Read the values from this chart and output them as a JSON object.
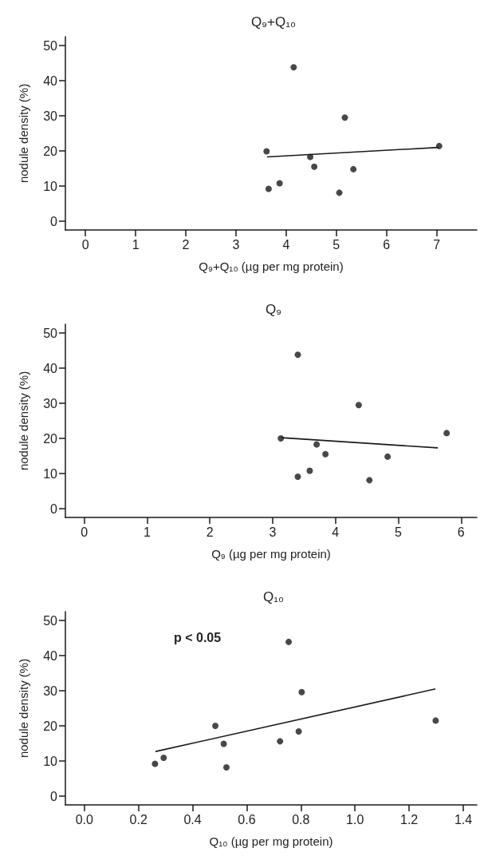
{
  "chart_data": [
    {
      "type": "scatter",
      "title": "Q₉+Q₁₀",
      "xlabel": "Q₉+Q₁₀ (µg per mg protein)",
      "ylabel": "nodule density (%)",
      "xlim": [
        -0.4,
        7.8
      ],
      "xticks": [
        0,
        1,
        2,
        3,
        4,
        5,
        6,
        7
      ],
      "ylim": [
        -2.5,
        52.5
      ],
      "yticks": [
        0,
        10,
        20,
        30,
        40,
        50
      ],
      "grid": false,
      "marker": "circle",
      "series": [
        {
          "color": "#1a1a1a",
          "x": [
            4.15,
            5.17,
            3.61,
            4.48,
            4.56,
            5.34,
            3.87,
            3.65,
            5.06,
            7.05
          ],
          "values": [
            43.8,
            29.5,
            19.9,
            18.3,
            15.5,
            14.8,
            10.8,
            9.2,
            8.1,
            21.4
          ]
        },
        {
          "type": "line",
          "color": "#1a1a1a",
          "marker": "none",
          "line_style": "solid",
          "x": [
            3.62,
            7.04
          ],
          "values": [
            18.3,
            21.0
          ]
        }
      ]
    },
    {
      "type": "scatter",
      "title": "Q₉",
      "xlabel": "Q₉ (µg per mg protein)",
      "ylabel": "nodule density (%)",
      "xlim": [
        -0.3,
        6.25
      ],
      "xticks": [
        0,
        1,
        2,
        3,
        4,
        5,
        6
      ],
      "ylim": [
        -2.5,
        52.5
      ],
      "yticks": [
        0,
        10,
        20,
        30,
        40,
        50
      ],
      "grid": false,
      "marker": "circle",
      "series": [
        {
          "color": "#1a1a1a",
          "x": [
            3.4,
            4.37,
            3.13,
            3.7,
            3.84,
            4.83,
            3.59,
            3.4,
            4.54,
            5.77
          ],
          "values": [
            43.8,
            29.5,
            20.0,
            18.3,
            15.5,
            14.8,
            10.8,
            9.1,
            8.1,
            21.5
          ]
        },
        {
          "type": "line",
          "color": "#1a1a1a",
          "marker": "none",
          "line_style": "solid",
          "x": [
            3.14,
            5.63
          ],
          "values": [
            20.2,
            17.3
          ]
        }
      ]
    },
    {
      "type": "scatter",
      "title": "Q₁₀",
      "xlabel": "Q₁₀ (µg per mg protein)",
      "ylabel": "nodule density (%)",
      "annotations": [
        "p < 0.05"
      ],
      "xlim": [
        -0.07,
        1.45
      ],
      "xticks": [
        {
          "value": 0,
          "label": "0.0"
        },
        0.2,
        0.4,
        0.6,
        0.8,
        {
          "value": 1,
          "label": "1.0"
        },
        1.2,
        1.4
      ],
      "ylim": [
        -2.5,
        52.5
      ],
      "yticks": [
        0,
        10,
        20,
        30,
        40,
        50
      ],
      "grid": false,
      "marker": "circle",
      "series": [
        {
          "color": "#1a1a1a",
          "x": [
            0.755,
            0.803,
            0.484,
            0.792,
            0.723,
            0.515,
            0.293,
            0.261,
            0.525,
            1.298
          ],
          "values": [
            43.9,
            29.6,
            20.0,
            18.4,
            15.6,
            14.9,
            10.9,
            9.2,
            8.2,
            21.5
          ]
        },
        {
          "type": "line",
          "color": "#1a1a1a",
          "marker": "none",
          "line_style": "solid",
          "x": [
            0.263,
            1.297
          ],
          "values": [
            12.7,
            30.5
          ]
        }
      ]
    }
  ]
}
